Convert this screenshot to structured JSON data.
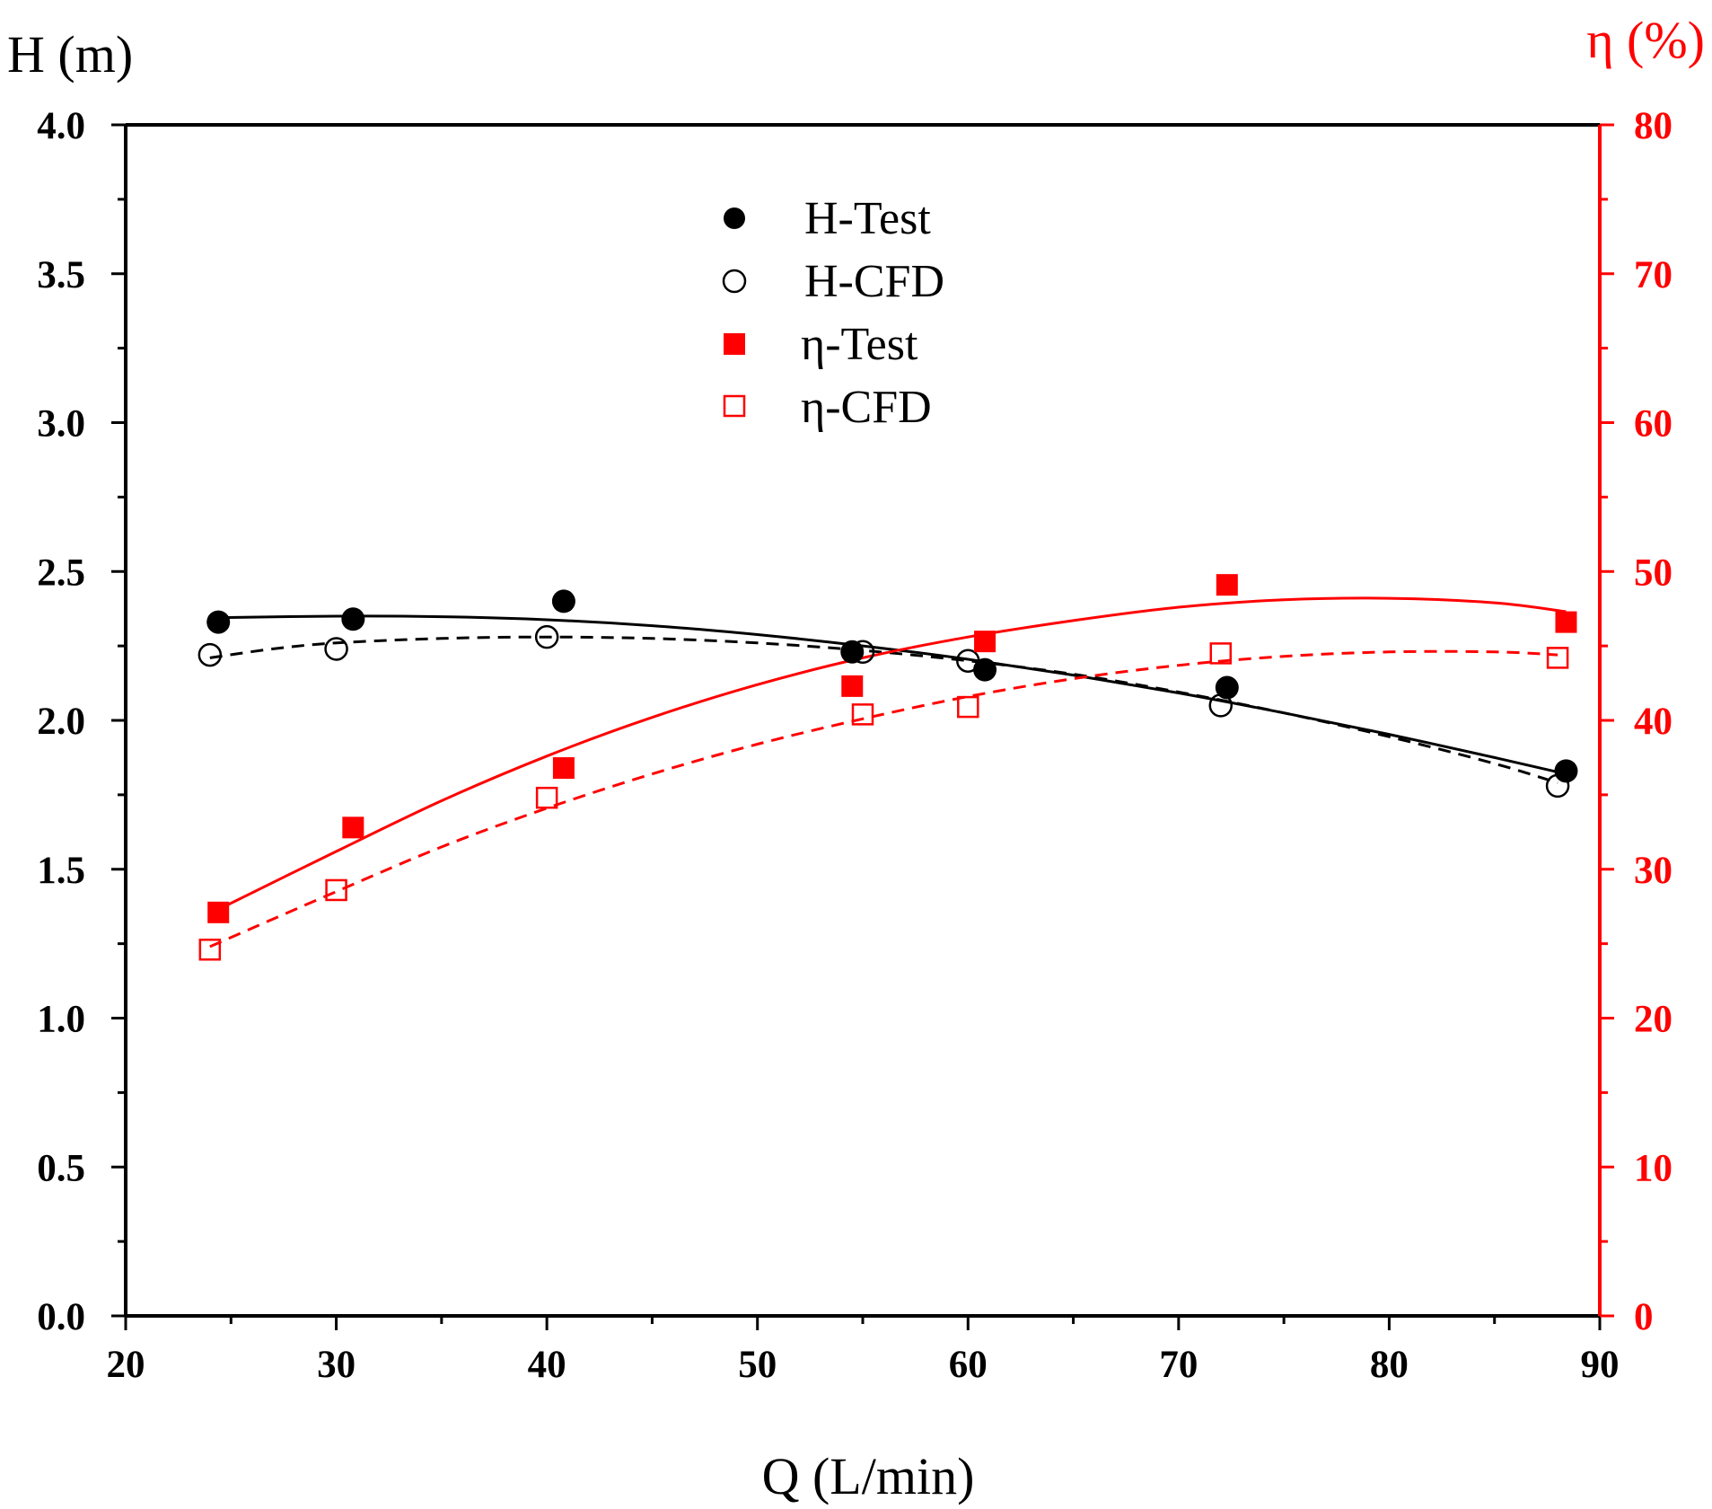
{
  "colors": {
    "black": "#000000",
    "red": "#ff0000"
  },
  "chart_data": {
    "type": "scatter",
    "title": "",
    "xlabel": "Q (L/min)",
    "ylabel_left": "H (m)",
    "ylabel_right": "η (%)",
    "xlim": [
      20,
      90
    ],
    "ylim_left": [
      0.0,
      4.0
    ],
    "ylim_right": [
      0,
      80
    ],
    "x_ticks": [
      "20",
      "30",
      "40",
      "50",
      "60",
      "70",
      "80",
      "90"
    ],
    "y_left_ticks": [
      "0.0",
      "0.5",
      "1.0",
      "1.5",
      "2.0",
      "2.5",
      "3.0",
      "3.5",
      "4.0"
    ],
    "y_right_ticks": [
      "0",
      "10",
      "20",
      "30",
      "40",
      "50",
      "60",
      "70",
      "80"
    ],
    "legend_position": "top-center",
    "series": [
      {
        "name": "H-Test",
        "axis": "left",
        "marker": "filled-circle",
        "color": "#000000",
        "line": "solid",
        "x": [
          24.4,
          30.8,
          40.8,
          54.5,
          60.8,
          72.3,
          88.4
        ],
        "y": [
          2.33,
          2.34,
          2.4,
          2.23,
          2.17,
          2.11,
          1.83
        ],
        "fit_x": [
          24.4,
          30,
          35,
          40,
          45,
          50,
          55,
          60,
          65,
          70,
          75,
          80,
          85,
          88.4
        ],
        "fit_y": [
          2.345,
          2.35,
          2.348,
          2.338,
          2.318,
          2.288,
          2.25,
          2.205,
          2.152,
          2.092,
          2.025,
          1.953,
          1.875,
          1.82
        ]
      },
      {
        "name": "H-CFD",
        "axis": "left",
        "marker": "open-circle",
        "color": "#000000",
        "line": "dashed",
        "x": [
          24,
          30,
          40,
          55,
          60,
          72,
          88
        ],
        "y": [
          2.22,
          2.24,
          2.28,
          2.23,
          2.2,
          2.05,
          1.78
        ],
        "fit_x": [
          24,
          27,
          30,
          35,
          40,
          45,
          50,
          55,
          60,
          65,
          70,
          75,
          80,
          85,
          88
        ],
        "fit_y": [
          2.21,
          2.24,
          2.26,
          2.275,
          2.28,
          2.275,
          2.26,
          2.235,
          2.2,
          2.155,
          2.095,
          2.025,
          1.945,
          1.855,
          1.79
        ]
      },
      {
        "name": "η-Test",
        "axis": "right",
        "marker": "filled-square",
        "color": "#ff0000",
        "line": "solid",
        "x": [
          24.4,
          30.8,
          40.8,
          54.5,
          60.8,
          72.3,
          88.4
        ],
        "y": [
          27.1,
          32.8,
          36.8,
          42.3,
          45.3,
          49.1,
          46.6
        ],
        "fit_x": [
          24.4,
          30,
          35,
          40,
          45,
          50,
          55,
          60,
          65,
          70,
          75,
          80,
          85,
          88.4
        ],
        "fit_y": [
          27.3,
          31.2,
          34.6,
          37.6,
          40.2,
          42.4,
          44.2,
          45.6,
          46.7,
          47.6,
          48.1,
          48.2,
          47.9,
          47.3
        ]
      },
      {
        "name": "η-CFD",
        "axis": "right",
        "marker": "open-square",
        "color": "#ff0000",
        "line": "dashed",
        "x": [
          24,
          30,
          40,
          55,
          60,
          72,
          88
        ],
        "y": [
          24.6,
          28.6,
          34.8,
          40.4,
          40.9,
          44.5,
          44.2
        ],
        "fit_x": [
          24,
          30,
          35,
          40,
          45,
          50,
          55,
          60,
          65,
          70,
          75,
          80,
          85,
          88
        ],
        "fit_y": [
          24.8,
          28.5,
          31.5,
          34.1,
          36.4,
          38.4,
          40.1,
          41.6,
          42.8,
          43.7,
          44.3,
          44.6,
          44.6,
          44.4
        ]
      }
    ]
  }
}
